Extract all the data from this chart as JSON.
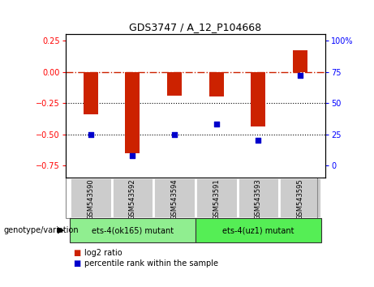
{
  "title": "GDS3747 / A_12_P104668",
  "samples": [
    "GSM543590",
    "GSM543592",
    "GSM543594",
    "GSM543591",
    "GSM543593",
    "GSM543595"
  ],
  "log2_ratio": [
    -0.34,
    -0.65,
    -0.19,
    -0.2,
    -0.44,
    0.17
  ],
  "percentile_rank": [
    25,
    8,
    25,
    33,
    20,
    72
  ],
  "groups": [
    {
      "label": "ets-4(ok165) mutant",
      "indices": [
        0,
        1,
        2
      ],
      "color": "#90ee90"
    },
    {
      "label": "ets-4(uz1) mutant",
      "indices": [
        3,
        4,
        5
      ],
      "color": "#55ee55"
    }
  ],
  "ylim": [
    -0.85,
    0.3
  ],
  "yticks_left": [
    -0.75,
    -0.5,
    -0.25,
    0.0,
    0.25
  ],
  "yticks_right": [
    0,
    25,
    50,
    75,
    100
  ],
  "hline_0_color": "#cc2200",
  "hline_dotted_color": "#000000",
  "bar_color": "#cc2200",
  "dot_color": "#0000cc",
  "bar_width": 0.35,
  "cell_gray": "#cccccc",
  "cell_edge": "#ffffff",
  "legend_items": [
    {
      "label": "log2 ratio",
      "color": "#cc2200"
    },
    {
      "label": "percentile rank within the sample",
      "color": "#0000cc"
    }
  ]
}
